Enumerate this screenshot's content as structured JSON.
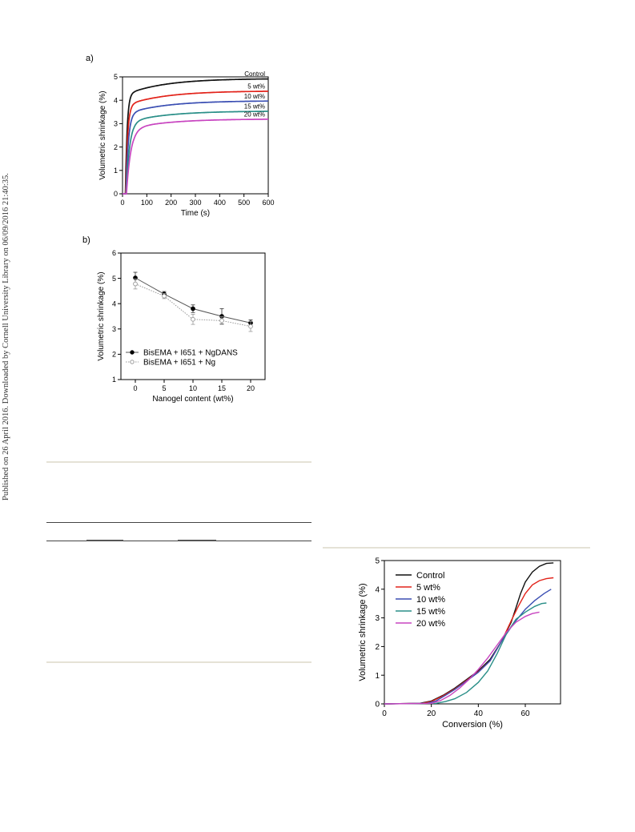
{
  "watermark": "Published on 26 April 2016. Downloaded by Cornell University Library on 06/09/2016 21:40:35.",
  "chart_data": [
    {
      "panel": "a)",
      "type": "line",
      "xlabel": "Time (s)",
      "ylabel": "Volumetric shrinkage (%)",
      "xlim": [
        0,
        600
      ],
      "ylim": [
        0,
        5
      ],
      "xticks": [
        0,
        100,
        200,
        300,
        400,
        500,
        600
      ],
      "yticks": [
        0,
        1,
        2,
        3,
        4,
        5
      ],
      "series": [
        {
          "name": "Control",
          "color": "#111111",
          "plateau": 4.93,
          "rise": 7,
          "onset": 12
        },
        {
          "name": "5 wt%",
          "color": "#e2231a",
          "plateau": 4.4,
          "rise": 8,
          "onset": 13
        },
        {
          "name": "10 wt%",
          "color": "#3b4fb3",
          "plateau": 3.98,
          "rise": 10,
          "onset": 14
        },
        {
          "name": "15 wt%",
          "color": "#2a8f88",
          "plateau": 3.54,
          "rise": 14,
          "onset": 15
        },
        {
          "name": "20 wt%",
          "color": "#c845c0",
          "plateau": 3.2,
          "rise": 18,
          "onset": 16
        }
      ]
    },
    {
      "panel": "b)",
      "type": "line",
      "xlabel": "Nanogel content (wt%)",
      "ylabel": "Volumetric shrinkage (%)",
      "xlim": [
        -2.5,
        22.5
      ],
      "ylim": [
        1,
        6
      ],
      "xticks": [
        0,
        5,
        10,
        15,
        20
      ],
      "yticks": [
        1,
        2,
        3,
        4,
        5,
        6
      ],
      "legend_position": "bottom-left",
      "series": [
        {
          "name": "BisEMA + I651 + NgDANS",
          "marker": "filled-circle",
          "line": "solid",
          "x": [
            0,
            5,
            10,
            15,
            20
          ],
          "y": [
            5.02,
            4.38,
            3.8,
            3.5,
            3.24
          ],
          "err": [
            0.22,
            0.1,
            0.15,
            0.3,
            0.12
          ]
        },
        {
          "name": "BisEMA + I651 + Ng",
          "marker": "open-circle",
          "line": "dotted",
          "x": [
            0,
            5,
            10,
            15,
            20
          ],
          "y": [
            4.78,
            4.3,
            3.38,
            3.33,
            3.1
          ],
          "err": [
            0.2,
            0.1,
            0.2,
            0.15,
            0.2
          ]
        }
      ]
    },
    {
      "type": "line",
      "xlabel": "Conversion (%)",
      "ylabel": "Volumetric shrinkage (%)",
      "xlim": [
        0,
        75
      ],
      "ylim": [
        0,
        5
      ],
      "xticks": [
        0,
        20,
        40,
        60
      ],
      "yticks": [
        0,
        1,
        2,
        3,
        4,
        5
      ],
      "legend_position": "top-left",
      "series": [
        {
          "name": "Control",
          "color": "#111111",
          "x": [
            0,
            15,
            20,
            25,
            30,
            35,
            40,
            45,
            50,
            54,
            56,
            58,
            60,
            63,
            66,
            69,
            72
          ],
          "y": [
            0,
            0.02,
            0.1,
            0.3,
            0.55,
            0.85,
            1.15,
            1.55,
            2.2,
            2.85,
            3.35,
            3.85,
            4.25,
            4.6,
            4.8,
            4.9,
            4.92
          ]
        },
        {
          "name": "5 wt%",
          "color": "#e2231a",
          "x": [
            0,
            16,
            20,
            25,
            30,
            35,
            40,
            45,
            50,
            54,
            57,
            60,
            63,
            66,
            69,
            72
          ],
          "y": [
            0,
            0.02,
            0.08,
            0.28,
            0.52,
            0.82,
            1.12,
            1.5,
            2.2,
            2.9,
            3.4,
            3.85,
            4.15,
            4.3,
            4.37,
            4.4
          ]
        },
        {
          "name": "10 wt%",
          "color": "#3b4fb3",
          "x": [
            0,
            18,
            22,
            26,
            30,
            35,
            40,
            45,
            50,
            55,
            60,
            64,
            68,
            71
          ],
          "y": [
            0,
            0.02,
            0.1,
            0.3,
            0.5,
            0.8,
            1.1,
            1.5,
            2.2,
            2.8,
            3.3,
            3.6,
            3.85,
            4.0
          ]
        },
        {
          "name": "15 wt%",
          "color": "#2a8f88",
          "x": [
            0,
            22,
            26,
            30,
            35,
            40,
            44,
            48,
            52,
            56,
            60,
            64,
            67,
            69
          ],
          "y": [
            0,
            0.02,
            0.08,
            0.18,
            0.4,
            0.75,
            1.15,
            1.75,
            2.45,
            2.95,
            3.2,
            3.4,
            3.5,
            3.52
          ]
        },
        {
          "name": "20 wt%",
          "color": "#c845c0",
          "x": [
            0,
            20,
            24,
            28,
            32,
            36,
            40,
            44,
            48,
            52,
            56,
            60,
            63,
            66
          ],
          "y": [
            0,
            0.02,
            0.12,
            0.3,
            0.55,
            0.85,
            1.2,
            1.6,
            2.05,
            2.5,
            2.85,
            3.05,
            3.15,
            3.2
          ]
        }
      ]
    }
  ]
}
